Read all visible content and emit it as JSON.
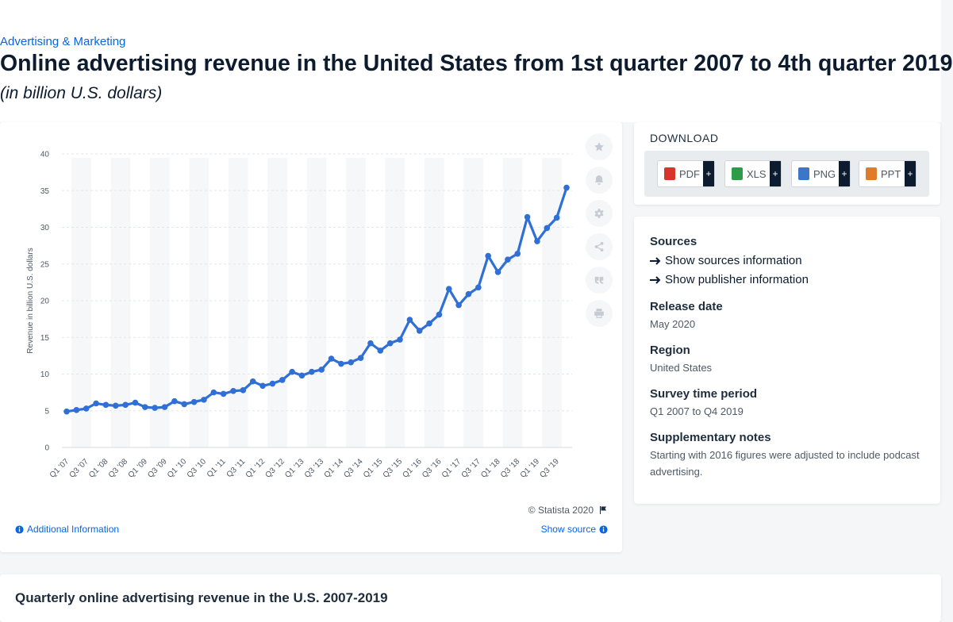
{
  "header": {
    "breadcrumb": "Advertising & Marketing",
    "title": "Online advertising revenue in the United States from 1st quarter 2007 to 4th quarter 2019",
    "subtitle": "(in billion U.S. dollars)"
  },
  "chart_card": {
    "copyright": "© Statista 2020",
    "additional_info": "Additional Information",
    "show_source": "Show source"
  },
  "download": {
    "title": "DOWNLOAD",
    "buttons": [
      {
        "label": "PDF",
        "color": "#d9342b"
      },
      {
        "label": "XLS",
        "color": "#2e9b48"
      },
      {
        "label": "PNG",
        "color": "#3a77c9"
      },
      {
        "label": "PPT",
        "color": "#e07b2a"
      }
    ]
  },
  "info": {
    "sources_heading": "Sources",
    "show_sources": "Show sources information",
    "show_publisher": "Show publisher information",
    "release_heading": "Release date",
    "release_value": "May 2020",
    "region_heading": "Region",
    "region_value": "United States",
    "survey_heading": "Survey time period",
    "survey_value": "Q1 2007 to Q4 2019",
    "notes_heading": "Supplementary notes",
    "notes_value": "Starting with 2016 figures were adjusted to include podcast advertising."
  },
  "bottom": {
    "title": "Quarterly online advertising revenue in the U.S. 2007-2019"
  },
  "colors": {
    "line": "#2f6fd6",
    "accent": "#0666e5"
  },
  "chart_data": {
    "type": "line",
    "ylabel": "Revenue in billion U.S. dollars",
    "ylim": [
      0,
      40
    ],
    "yticks": [
      0,
      5,
      10,
      15,
      20,
      25,
      30,
      35,
      40
    ],
    "grid": true,
    "x": [
      "Q1 '07",
      "Q2 '07",
      "Q3 '07",
      "Q4 '07",
      "Q1 '08",
      "Q2 '08",
      "Q3 '08",
      "Q4 '08",
      "Q1 '09",
      "Q2 '09",
      "Q3 '09",
      "Q4 '09",
      "Q1 '10",
      "Q2 '10",
      "Q3 '10",
      "Q4 '10",
      "Q1 '11",
      "Q2 '11",
      "Q3 '11",
      "Q4 '11",
      "Q1 '12",
      "Q2 '12",
      "Q3 '12",
      "Q4 '12",
      "Q1 '13",
      "Q2 '13",
      "Q3 '13",
      "Q4 '13",
      "Q1 '14",
      "Q2 '14",
      "Q3 '14",
      "Q4 '14",
      "Q1 '15",
      "Q2 '15",
      "Q3 '15",
      "Q4 '15",
      "Q1 '16",
      "Q2 '16",
      "Q3 '16",
      "Q4 '16",
      "Q1 '17",
      "Q2 '17",
      "Q3 '17",
      "Q4 '17",
      "Q1 '18",
      "Q2 '18",
      "Q3 '18",
      "Q4 '18",
      "Q1 '19",
      "Q2 '19",
      "Q3 '19",
      "Q4 '19"
    ],
    "xtick_labels": [
      "Q1 '07",
      "Q3 '07",
      "Q1 '08",
      "Q3 '08",
      "Q1 '09",
      "Q3 '09",
      "Q1 '10",
      "Q3 '10",
      "Q1 '11",
      "Q3 '11",
      "Q1 '12",
      "Q3 '12",
      "Q1 '13",
      "Q3 '13",
      "Q1 '14",
      "Q3 '14",
      "Q1 '15",
      "Q3 '15",
      "Q1 '16",
      "Q3 '16",
      "Q1 '17",
      "Q3 '17",
      "Q1 '18",
      "Q3 '18",
      "Q1 '19",
      "Q3 '19"
    ],
    "series": [
      {
        "values": [
          4.9,
          5.1,
          5.3,
          6.0,
          5.8,
          5.7,
          5.8,
          6.1,
          5.5,
          5.4,
          5.5,
          6.3,
          5.9,
          6.2,
          6.5,
          7.5,
          7.3,
          7.7,
          7.8,
          9.0,
          8.4,
          8.7,
          9.2,
          10.3,
          9.8,
          10.3,
          10.6,
          12.1,
          11.4,
          11.6,
          12.2,
          14.2,
          13.2,
          14.2,
          14.7,
          17.4,
          15.9,
          16.9,
          18.1,
          21.6,
          19.4,
          20.9,
          21.8,
          26.1,
          23.9,
          25.6,
          26.4,
          31.4,
          28.1,
          29.9,
          31.3,
          35.4
        ]
      }
    ]
  }
}
